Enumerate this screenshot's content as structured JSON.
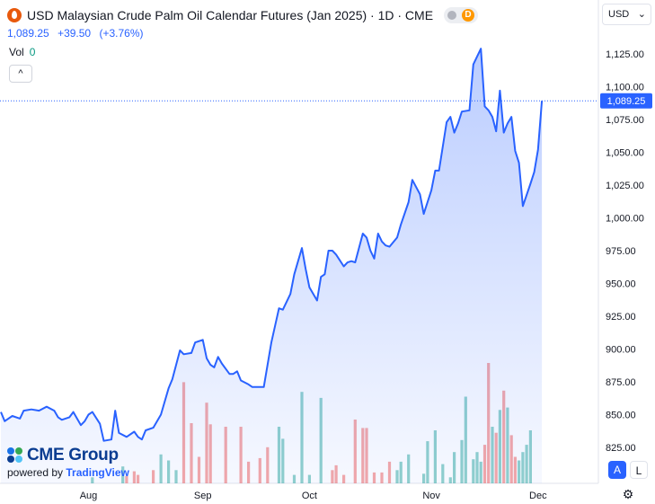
{
  "header": {
    "title": "USD Malaysian Crude Palm Oil Calendar Futures (Jan 2025) · 1D · CME",
    "badge_letter": "D",
    "last_price": "1,089.25",
    "change": "+39.50",
    "change_pct": "(+3.76%)",
    "volume_label": "Vol",
    "volume_value": "0",
    "collapse_glyph": "^"
  },
  "currency_select": {
    "value": "USD",
    "chevron": "⌄"
  },
  "logo": {
    "brand": "CME Group",
    "powered_prefix": "powered by",
    "powered_brand": "TradingView"
  },
  "controls": {
    "auto_label": "A",
    "log_label": "L",
    "settings_glyph": "⚙"
  },
  "colors": {
    "line": "#2962ff",
    "area_fill": "#2962ff",
    "vol_up": "#26a69a",
    "vol_down": "#ef5350",
    "current_price": "#2962ff"
  },
  "chart_data": {
    "type": "area",
    "y_axis": {
      "ticks": [
        825,
        850,
        875,
        900,
        925,
        950,
        975,
        1000,
        1025,
        1050,
        1075,
        1100,
        1125
      ],
      "tick_labels": [
        "825.00",
        "850.00",
        "875.00",
        "900.00",
        "925.00",
        "950.00",
        "975.00",
        "1,000.00",
        "1,025.00",
        "1,050.00",
        "1,075.00",
        "1,100.00",
        "1,125.00"
      ],
      "range": [
        805,
        1150
      ]
    },
    "x_axis": {
      "month_labels": [
        {
          "label": "Aug",
          "bar_index": 23
        },
        {
          "label": "Sep",
          "bar_index": 53
        },
        {
          "label": "Oct",
          "bar_index": 81
        },
        {
          "label": "Nov",
          "bar_index": 113
        },
        {
          "label": "Dec",
          "bar_index": 141
        }
      ],
      "bar_count": 141
    },
    "current_price": {
      "value": 1089.25,
      "label": "1,089.25"
    },
    "price": [
      {
        "i": 0,
        "v": 852
      },
      {
        "i": 1,
        "v": 845
      },
      {
        "i": 3,
        "v": 849
      },
      {
        "i": 5,
        "v": 847
      },
      {
        "i": 6,
        "v": 853
      },
      {
        "i": 8,
        "v": 854
      },
      {
        "i": 10,
        "v": 853
      },
      {
        "i": 12,
        "v": 856
      },
      {
        "i": 14,
        "v": 853
      },
      {
        "i": 15,
        "v": 848
      },
      {
        "i": 16,
        "v": 846
      },
      {
        "i": 18,
        "v": 848
      },
      {
        "i": 19,
        "v": 852
      },
      {
        "i": 21,
        "v": 842
      },
      {
        "i": 22,
        "v": 845
      },
      {
        "i": 23,
        "v": 850
      },
      {
        "i": 24,
        "v": 852
      },
      {
        "i": 26,
        "v": 843
      },
      {
        "i": 27,
        "v": 830
      },
      {
        "i": 29,
        "v": 831
      },
      {
        "i": 30,
        "v": 853
      },
      {
        "i": 31,
        "v": 836
      },
      {
        "i": 33,
        "v": 833
      },
      {
        "i": 35,
        "v": 837
      },
      {
        "i": 36,
        "v": 833
      },
      {
        "i": 37,
        "v": 831
      },
      {
        "i": 38,
        "v": 838
      },
      {
        "i": 40,
        "v": 840
      },
      {
        "i": 42,
        "v": 850
      },
      {
        "i": 44,
        "v": 870
      },
      {
        "i": 45,
        "v": 877
      },
      {
        "i": 47,
        "v": 899
      },
      {
        "i": 48,
        "v": 896
      },
      {
        "i": 50,
        "v": 897
      },
      {
        "i": 51,
        "v": 905
      },
      {
        "i": 53,
        "v": 907
      },
      {
        "i": 54,
        "v": 893
      },
      {
        "i": 55,
        "v": 888
      },
      {
        "i": 56,
        "v": 886
      },
      {
        "i": 57,
        "v": 894
      },
      {
        "i": 58,
        "v": 889
      },
      {
        "i": 60,
        "v": 881
      },
      {
        "i": 61,
        "v": 881
      },
      {
        "i": 62,
        "v": 883
      },
      {
        "i": 63,
        "v": 876
      },
      {
        "i": 65,
        "v": 873
      },
      {
        "i": 66,
        "v": 871
      },
      {
        "i": 68,
        "v": 871
      },
      {
        "i": 69,
        "v": 871
      },
      {
        "i": 71,
        "v": 905
      },
      {
        "i": 73,
        "v": 931
      },
      {
        "i": 74,
        "v": 930
      },
      {
        "i": 76,
        "v": 942
      },
      {
        "i": 77,
        "v": 957
      },
      {
        "i": 79,
        "v": 977
      },
      {
        "i": 80,
        "v": 961
      },
      {
        "i": 81,
        "v": 947
      },
      {
        "i": 83,
        "v": 937
      },
      {
        "i": 84,
        "v": 955
      },
      {
        "i": 85,
        "v": 957
      },
      {
        "i": 86,
        "v": 975
      },
      {
        "i": 87,
        "v": 975
      },
      {
        "i": 88,
        "v": 972
      },
      {
        "i": 90,
        "v": 963
      },
      {
        "i": 91,
        "v": 966
      },
      {
        "i": 92,
        "v": 967
      },
      {
        "i": 93,
        "v": 966
      },
      {
        "i": 95,
        "v": 988
      },
      {
        "i": 96,
        "v": 985
      },
      {
        "i": 97,
        "v": 975
      },
      {
        "i": 98,
        "v": 969
      },
      {
        "i": 99,
        "v": 988
      },
      {
        "i": 100,
        "v": 982
      },
      {
        "i": 101,
        "v": 979
      },
      {
        "i": 102,
        "v": 978
      },
      {
        "i": 104,
        "v": 985
      },
      {
        "i": 105,
        "v": 995
      },
      {
        "i": 107,
        "v": 1012
      },
      {
        "i": 108,
        "v": 1029
      },
      {
        "i": 110,
        "v": 1018
      },
      {
        "i": 111,
        "v": 1003
      },
      {
        "i": 113,
        "v": 1021
      },
      {
        "i": 114,
        "v": 1036
      },
      {
        "i": 115,
        "v": 1036
      },
      {
        "i": 117,
        "v": 1073
      },
      {
        "i": 118,
        "v": 1077
      },
      {
        "i": 119,
        "v": 1065
      },
      {
        "i": 120,
        "v": 1072
      },
      {
        "i": 121,
        "v": 1081
      },
      {
        "i": 123,
        "v": 1082
      },
      {
        "i": 124,
        "v": 1117
      },
      {
        "i": 126,
        "v": 1129
      },
      {
        "i": 127,
        "v": 1085
      },
      {
        "i": 128,
        "v": 1082
      },
      {
        "i": 129,
        "v": 1077
      },
      {
        "i": 130,
        "v": 1066
      },
      {
        "i": 131,
        "v": 1097
      },
      {
        "i": 132,
        "v": 1065
      },
      {
        "i": 133,
        "v": 1072
      },
      {
        "i": 134,
        "v": 1077
      },
      {
        "i": 135,
        "v": 1051
      },
      {
        "i": 136,
        "v": 1042
      },
      {
        "i": 137,
        "v": 1009
      },
      {
        "i": 139,
        "v": 1026
      },
      {
        "i": 140,
        "v": 1035
      },
      {
        "i": 141,
        "v": 1052
      },
      {
        "i": 142,
        "v": 1089.25
      }
    ],
    "volume": {
      "scale_max": 100,
      "bars": [
        {
          "i": 24,
          "h": 5,
          "up": true
        },
        {
          "i": 32,
          "h": 14,
          "up": true
        },
        {
          "i": 33,
          "h": 6,
          "up": false
        },
        {
          "i": 35,
          "h": 10,
          "up": false
        },
        {
          "i": 36,
          "h": 7,
          "up": false
        },
        {
          "i": 40,
          "h": 11,
          "up": false
        },
        {
          "i": 42,
          "h": 24,
          "up": true
        },
        {
          "i": 44,
          "h": 19,
          "up": true
        },
        {
          "i": 46,
          "h": 11,
          "up": true
        },
        {
          "i": 48,
          "h": 84,
          "up": false
        },
        {
          "i": 50,
          "h": 50,
          "up": false
        },
        {
          "i": 52,
          "h": 22,
          "up": false
        },
        {
          "i": 54,
          "h": 67,
          "up": false
        },
        {
          "i": 55,
          "h": 49,
          "up": false
        },
        {
          "i": 59,
          "h": 47,
          "up": false
        },
        {
          "i": 63,
          "h": 47,
          "up": false
        },
        {
          "i": 65,
          "h": 18,
          "up": false
        },
        {
          "i": 68,
          "h": 21,
          "up": false
        },
        {
          "i": 70,
          "h": 30,
          "up": false
        },
        {
          "i": 73,
          "h": 47,
          "up": true
        },
        {
          "i": 74,
          "h": 37,
          "up": true
        },
        {
          "i": 77,
          "h": 7,
          "up": true
        },
        {
          "i": 79,
          "h": 76,
          "up": true
        },
        {
          "i": 81,
          "h": 7,
          "up": true
        },
        {
          "i": 84,
          "h": 71,
          "up": true
        },
        {
          "i": 87,
          "h": 11,
          "up": false
        },
        {
          "i": 88,
          "h": 15,
          "up": false
        },
        {
          "i": 90,
          "h": 7,
          "up": false
        },
        {
          "i": 93,
          "h": 53,
          "up": false
        },
        {
          "i": 95,
          "h": 46,
          "up": false
        },
        {
          "i": 96,
          "h": 46,
          "up": false
        },
        {
          "i": 98,
          "h": 9,
          "up": false
        },
        {
          "i": 100,
          "h": 9,
          "up": false
        },
        {
          "i": 102,
          "h": 18,
          "up": false
        },
        {
          "i": 104,
          "h": 11,
          "up": true
        },
        {
          "i": 105,
          "h": 18,
          "up": true
        },
        {
          "i": 107,
          "h": 24,
          "up": true
        },
        {
          "i": 111,
          "h": 8,
          "up": true
        },
        {
          "i": 112,
          "h": 35,
          "up": true
        },
        {
          "i": 114,
          "h": 44,
          "up": true
        },
        {
          "i": 116,
          "h": 16,
          "up": true
        },
        {
          "i": 118,
          "h": 5,
          "up": true
        },
        {
          "i": 119,
          "h": 26,
          "up": true
        },
        {
          "i": 121,
          "h": 36,
          "up": true
        },
        {
          "i": 122,
          "h": 72,
          "up": true
        },
        {
          "i": 124,
          "h": 20,
          "up": true
        },
        {
          "i": 125,
          "h": 26,
          "up": true
        },
        {
          "i": 126,
          "h": 18,
          "up": true
        },
        {
          "i": 127,
          "h": 32,
          "up": false
        },
        {
          "i": 128,
          "h": 100,
          "up": false
        },
        {
          "i": 129,
          "h": 47,
          "up": true
        },
        {
          "i": 130,
          "h": 42,
          "up": false
        },
        {
          "i": 131,
          "h": 61,
          "up": true
        },
        {
          "i": 132,
          "h": 77,
          "up": false
        },
        {
          "i": 133,
          "h": 63,
          "up": true
        },
        {
          "i": 134,
          "h": 40,
          "up": false
        },
        {
          "i": 135,
          "h": 22,
          "up": false
        },
        {
          "i": 136,
          "h": 19,
          "up": true
        },
        {
          "i": 137,
          "h": 26,
          "up": true
        },
        {
          "i": 138,
          "h": 32,
          "up": true
        },
        {
          "i": 139,
          "h": 44,
          "up": true
        }
      ]
    },
    "grid": false,
    "legend": "none"
  }
}
